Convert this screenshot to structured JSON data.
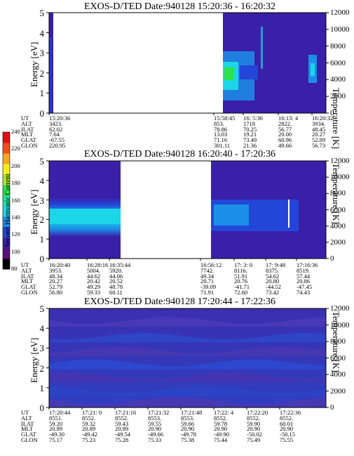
{
  "colorbar": {
    "label": "Second Harmonic Current",
    "ticks": [
      "80",
      "100",
      "120",
      "140",
      "160",
      "180",
      "200",
      "220",
      "240"
    ],
    "colors": [
      "#000000",
      "#5a0f7a",
      "#3a1fa8",
      "#2346d8",
      "#1c8fe8",
      "#1ad6e6",
      "#22e0a0",
      "#2ee04a",
      "#a8e62a",
      "#f4ee22",
      "#f4a820",
      "#ef4d1c",
      "#e01010"
    ]
  },
  "chart_data": [
    {
      "type": "heatmap",
      "title": "EXOS-D/TED   Date:940128   15:20:36 - 16:20:32",
      "ylabel": "Energy [eV]",
      "ylabel_right": "Temperature [K]",
      "ylim": [
        0,
        5
      ],
      "ylim_right": [
        0,
        12000
      ],
      "yticks": [
        "0",
        "1",
        "2",
        "3",
        "4",
        "5"
      ],
      "yticks_right": [
        "0",
        "2000",
        "4000",
        "6000",
        "8000",
        "10000",
        "12000"
      ],
      "table_rows": [
        "UT",
        "ALT",
        "ILAT",
        "MLT",
        "GLAT",
        "GLON"
      ],
      "columns": [
        {
          "UT": "15:20:36",
          "ALT": "3423.",
          "ILAT": "62.02",
          "MLT": "7.64",
          "GLAT": "-67.55",
          "GLON": "220.95"
        },
        {
          "UT": "15:58:45",
          "ALT": "853.",
          "ILAT": "78.86",
          "MLT": "13.03",
          "GLAT": "71.16",
          "GLON": "301.11"
        },
        {
          "UT": "16: 5:36",
          "ALT": "1718",
          "ILAT": "70.25",
          "MLT": "19.21",
          "GLAT": "73.49",
          "GLON": "21.36"
        },
        {
          "UT": "16:13: 4",
          "ALT": "2822.",
          "ILAT": "56.77",
          "MLT": "20.00",
          "GLAT": "60.96",
          "GLON": "49.66"
        },
        {
          "UT": "16:20:32",
          "ALT": "3934.",
          "ILAT": "48.45",
          "MLT": "20.27",
          "GLAT": "52.89",
          "GLON": "56.73"
        }
      ]
    },
    {
      "type": "heatmap",
      "title": "EXOS-D/TED   Date:940128   16:20:40 - 17:20:36",
      "ylabel": "Energy [eV]",
      "ylabel_right": "Temperature [K]",
      "ylim": [
        0,
        5
      ],
      "ylim_right": [
        0,
        12000
      ],
      "yticks": [
        "0",
        "1",
        "2",
        "3",
        "4",
        "5"
      ],
      "yticks_right": [
        "0",
        "2000",
        "4000",
        "6000",
        "8000",
        "10000",
        "12000"
      ],
      "table_rows": [
        "UT",
        "ALT",
        "ILAT",
        "MLT",
        "GLAT",
        "GLON"
      ],
      "columns": [
        {
          "UT": "16:20:40",
          "ALT": "3953.",
          "ILAT": "48.34",
          "MLT": "20.27",
          "GLAT": "52.79",
          "GLON": "56.80"
        },
        {
          "UT": "16:28:16",
          "ALT": "5004.",
          "ILAT": "44.62",
          "MLT": "20.42",
          "GLAT": "49.29",
          "GLON": "59.33"
        },
        {
          "UT": "16:35:44",
          "ALT": "5920.",
          "ILAT": "44.06",
          "MLT": "20.52",
          "GLAT": "48.78",
          "GLON": "60.11"
        },
        {
          "UT": "16:56:12",
          "ALT": "7742.",
          "ILAT": "49.34",
          "MLT": "20.71",
          "GLAT": "-39.09",
          "GLON": "71.91"
        },
        {
          "UT": "17: 3: 0",
          "ALT": "8116.",
          "ILAT": "51.91",
          "MLT": "20.76",
          "GLAT": "-41.71",
          "GLON": "72.60"
        },
        {
          "UT": "17: 9:48",
          "ALT": "8375.",
          "ILAT": "54.62",
          "MLT": "20.80",
          "GLAT": "-44.52",
          "GLON": "73.42"
        },
        {
          "UT": "17:16:36",
          "ALT": "8519.",
          "ILAT": "57.44",
          "MLT": "20.86",
          "GLAT": "-47.45",
          "GLON": "74.43"
        }
      ]
    },
    {
      "type": "heatmap",
      "title": "EXOS-D/TED   Date:940128   17:20:44 - 17:22:36",
      "ylabel": "Energy [eV]",
      "ylabel_right": "Temperature [K]",
      "ylim": [
        0,
        5
      ],
      "ylim_right": [
        0,
        12000
      ],
      "yticks": [
        "0",
        "1",
        "2",
        "3",
        "4",
        "5"
      ],
      "yticks_right": [
        "0",
        "2000",
        "4000",
        "6000",
        "8000",
        "10000",
        "12000"
      ],
      "table_rows": [
        "UT",
        "ALT",
        "ILAT",
        "MLT",
        "GLAT",
        "GLON"
      ],
      "columns": [
        {
          "UT": "17:20:44",
          "ALT": "8551.",
          "ILAT": "59.20",
          "MLT": "20.89",
          "GLAT": "-49.30",
          "GLON": "75.17"
        },
        {
          "UT": "17:21: 0",
          "ALT": "8552.",
          "ILAT": "59.32",
          "MLT": "20.89",
          "GLAT": "-49.42",
          "GLON": "75.23"
        },
        {
          "UT": "17:21:16",
          "ALT": "8552.",
          "ILAT": "59.43",
          "MLT": "20.89",
          "GLAT": "-49.54",
          "GLON": "75.28"
        },
        {
          "UT": "17:21:32",
          "ALT": "8553.",
          "ILAT": "59.55",
          "MLT": "20.90",
          "GLAT": "-49.66",
          "GLON": "75.33"
        },
        {
          "UT": "17:21:48",
          "ALT": "8553.",
          "ILAT": "59.66",
          "MLT": "20.90",
          "GLAT": "-49.78",
          "GLON": "75.38"
        },
        {
          "UT": "17:22: 4",
          "ALT": "8552.",
          "ILAT": "59.78",
          "MLT": "20.90",
          "GLAT": "-49.90",
          "GLON": "75.44"
        },
        {
          "UT": "17:22:20",
          "ALT": "8552.",
          "ILAT": "59.90",
          "MLT": "20.90",
          "GLAT": "-50.02",
          "GLON": "75.49"
        },
        {
          "UT": "17:22:36",
          "ALT": "8552.",
          "ILAT": "60.01",
          "MLT": "20.90",
          "GLAT": "-50.15",
          "GLON": "75.55"
        }
      ]
    }
  ]
}
